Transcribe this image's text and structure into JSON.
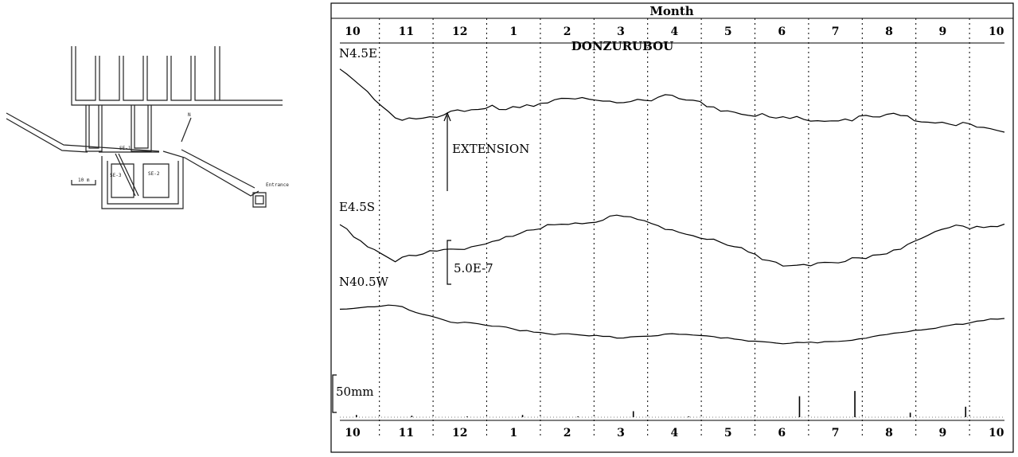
{
  "tunnel_map": {
    "labels": {
      "se1": "SE-1",
      "se2": "SE-2",
      "se3": "SE-3",
      "entrance": "Entrance",
      "north": "N",
      "scale": "10 m"
    }
  },
  "chart_data": {
    "type": "line",
    "title": "DONZURUBOU",
    "xlabel": "Month",
    "x_ticks": [
      "10",
      "11",
      "12",
      "1",
      "2",
      "3",
      "4",
      "5",
      "6",
      "7",
      "8",
      "9",
      "10"
    ],
    "series": [
      {
        "name": "N4.5E",
        "color": "#000000",
        "values": [
          0.0,
          -1.6,
          -1.4,
          -1.2,
          -1.0,
          -1.0,
          -0.9,
          -1.3,
          -1.6,
          -1.6,
          -1.5,
          -1.7,
          -2.0
        ]
      },
      {
        "name": "E4.5S",
        "color": "#000000",
        "values": [
          0.0,
          -0.9,
          -0.6,
          -0.3,
          0.1,
          0.3,
          0.0,
          -0.5,
          -1.0,
          -1.0,
          -0.6,
          0.0,
          0.1
        ]
      },
      {
        "name": "N40.5W",
        "color": "#000000",
        "values": [
          0.0,
          0.1,
          -0.4,
          -0.6,
          -0.8,
          -0.9,
          -0.8,
          -0.9,
          -1.1,
          -1.0,
          -0.8,
          -0.5,
          -0.3
        ]
      }
    ],
    "precipitation": {
      "values": [
        3,
        2,
        1,
        3,
        1,
        8,
        1,
        0,
        28,
        35,
        6,
        14,
        2
      ]
    },
    "annotations": {
      "extension": "EXTENSION",
      "strain_scale": "5.0E-7",
      "rain_scale": "50mm"
    },
    "grid": true
  }
}
